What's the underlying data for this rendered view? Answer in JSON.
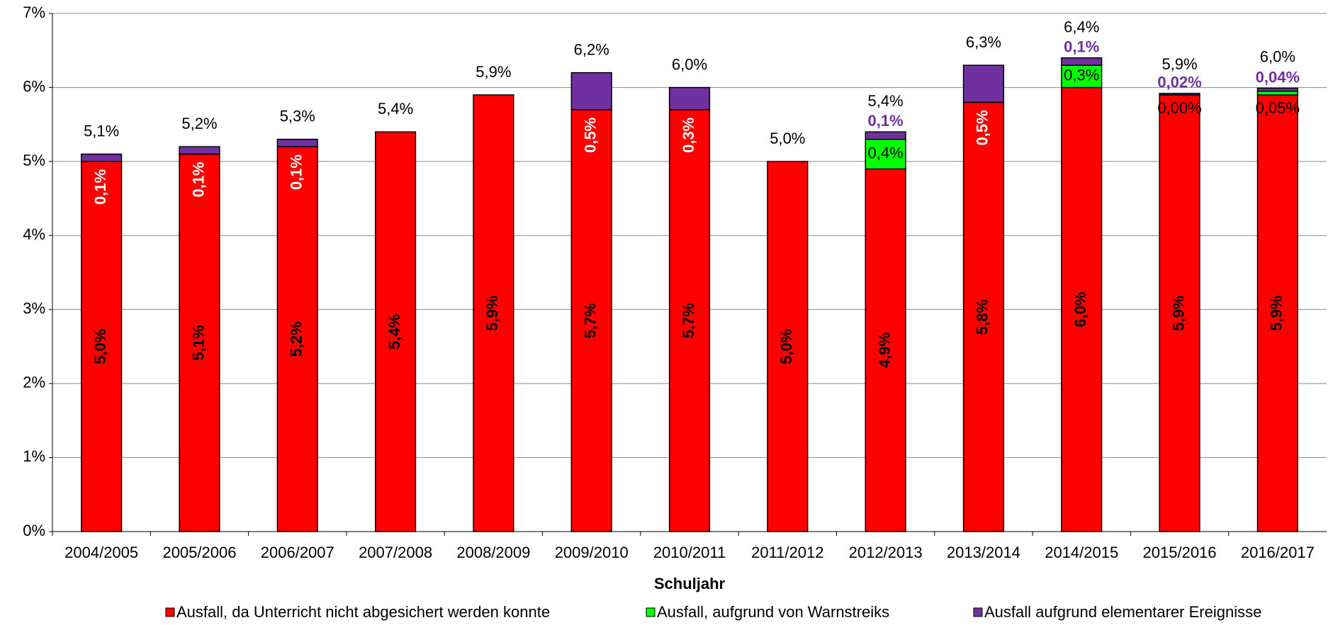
{
  "chart_data": {
    "type": "stacked_bar",
    "x_label": "Schuljahr",
    "categories": [
      "2004/2005",
      "2005/2006",
      "2006/2007",
      "2007/2008",
      "2008/2009",
      "2009/2010",
      "2010/2011",
      "2011/2012",
      "2012/2013",
      "2013/2014",
      "2014/2015",
      "2015/2016",
      "2016/2017"
    ],
    "series": [
      {
        "name": "Ausfall, da Unterricht nicht abgesichert werden konnte",
        "color": "#ff0000",
        "values": [
          5.0,
          5.1,
          5.2,
          5.4,
          5.9,
          5.7,
          5.7,
          5.0,
          4.9,
          5.8,
          6.0,
          5.9,
          5.9
        ],
        "value_labels": [
          "5,0%",
          "5,1%",
          "5,2%",
          "5,4%",
          "5,9%",
          "5,7%",
          "5,7%",
          "5,0%",
          "4,9%",
          "5,8%",
          "6,0%",
          "5,9%",
          "5,9%"
        ]
      },
      {
        "name": "Ausfall, aufgrund von Warnstreiks",
        "color": "#00ff00",
        "values": [
          null,
          null,
          null,
          null,
          null,
          null,
          null,
          null,
          0.4,
          null,
          0.3,
          0.0,
          0.05
        ],
        "value_labels": [
          null,
          null,
          null,
          null,
          null,
          null,
          null,
          null,
          "0,4%",
          null,
          "0,3%",
          "0,00%",
          "0,05%"
        ]
      },
      {
        "name": "Ausfall aufgrund elementarer Ereignisse",
        "color": "#7030a0",
        "values": [
          0.1,
          0.1,
          0.1,
          null,
          null,
          0.5,
          0.3,
          null,
          0.1,
          0.5,
          0.1,
          0.02,
          0.04
        ],
        "value_labels": [
          "0,1%",
          "0,1%",
          "0,1%",
          null,
          null,
          "0,5%",
          "0,3%",
          null,
          "0,1%",
          "0,5%",
          "0,1%",
          "0,02%",
          "0,04%"
        ]
      }
    ],
    "totals": [
      5.1,
      5.2,
      5.3,
      5.4,
      5.9,
      6.2,
      6.0,
      5.0,
      5.4,
      6.3,
      6.4,
      5.9,
      6.0
    ],
    "total_labels": [
      "5,1%",
      "5,2%",
      "5,3%",
      "5,4%",
      "5,9%",
      "6,2%",
      "6,0%",
      "5,0%",
      "5,4%",
      "6,3%",
      "6,4%",
      "5,9%",
      "6,0%"
    ],
    "ylim": [
      0,
      7
    ],
    "yticks": [
      {
        "value": 0,
        "label": "0%"
      },
      {
        "value": 1,
        "label": "1%"
      },
      {
        "value": 2,
        "label": "2%"
      },
      {
        "value": 3,
        "label": "3%"
      },
      {
        "value": 4,
        "label": "4%"
      },
      {
        "value": 5,
        "label": "5%"
      },
      {
        "value": 6,
        "label": "6%"
      },
      {
        "value": 7,
        "label": "7%"
      }
    ],
    "grid": true
  }
}
